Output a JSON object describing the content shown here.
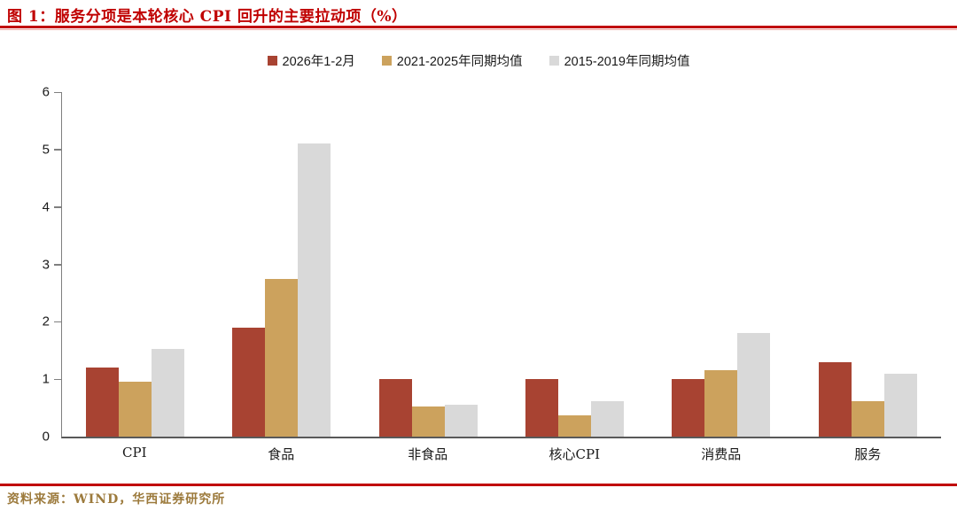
{
  "title": "图 1：服务分项是本轮核心 CPI 回升的主要拉动项（%）",
  "source": "资料来源：WIND，华西证券研究所",
  "colors": {
    "title_red": "#c00000",
    "source_gold": "#9c7a3c",
    "axis_gray": "#7f7f7f",
    "series_red": "#a84332",
    "series_gold": "#cca25d",
    "series_gray": "#d9d9d9"
  },
  "chart_data": {
    "type": "bar",
    "title": "图 1：服务分项是本轮核心 CPI 回升的主要拉动项（%）",
    "categories": [
      "CPI",
      "食品",
      "非食品",
      "核心CPI",
      "消费品",
      "服务"
    ],
    "series": [
      {
        "name": "2026年1-2月",
        "color": "#a84332",
        "values": [
          1.2,
          1.9,
          1.0,
          1.0,
          1.0,
          1.3
        ]
      },
      {
        "name": "2021-2025年同期均值",
        "color": "#cca25d",
        "values": [
          0.95,
          2.75,
          0.52,
          0.37,
          1.15,
          0.62
        ]
      },
      {
        "name": "2015-2019年同期均值",
        "color": "#d9d9d9",
        "values": [
          1.53,
          5.1,
          0.55,
          0.62,
          1.8,
          1.1
        ]
      }
    ],
    "xlabel": "",
    "ylabel": "",
    "ylim": [
      0,
      6
    ],
    "yticks": [
      0,
      1,
      2,
      3,
      4,
      5,
      6
    ],
    "grid": false,
    "legend_position": "top"
  }
}
